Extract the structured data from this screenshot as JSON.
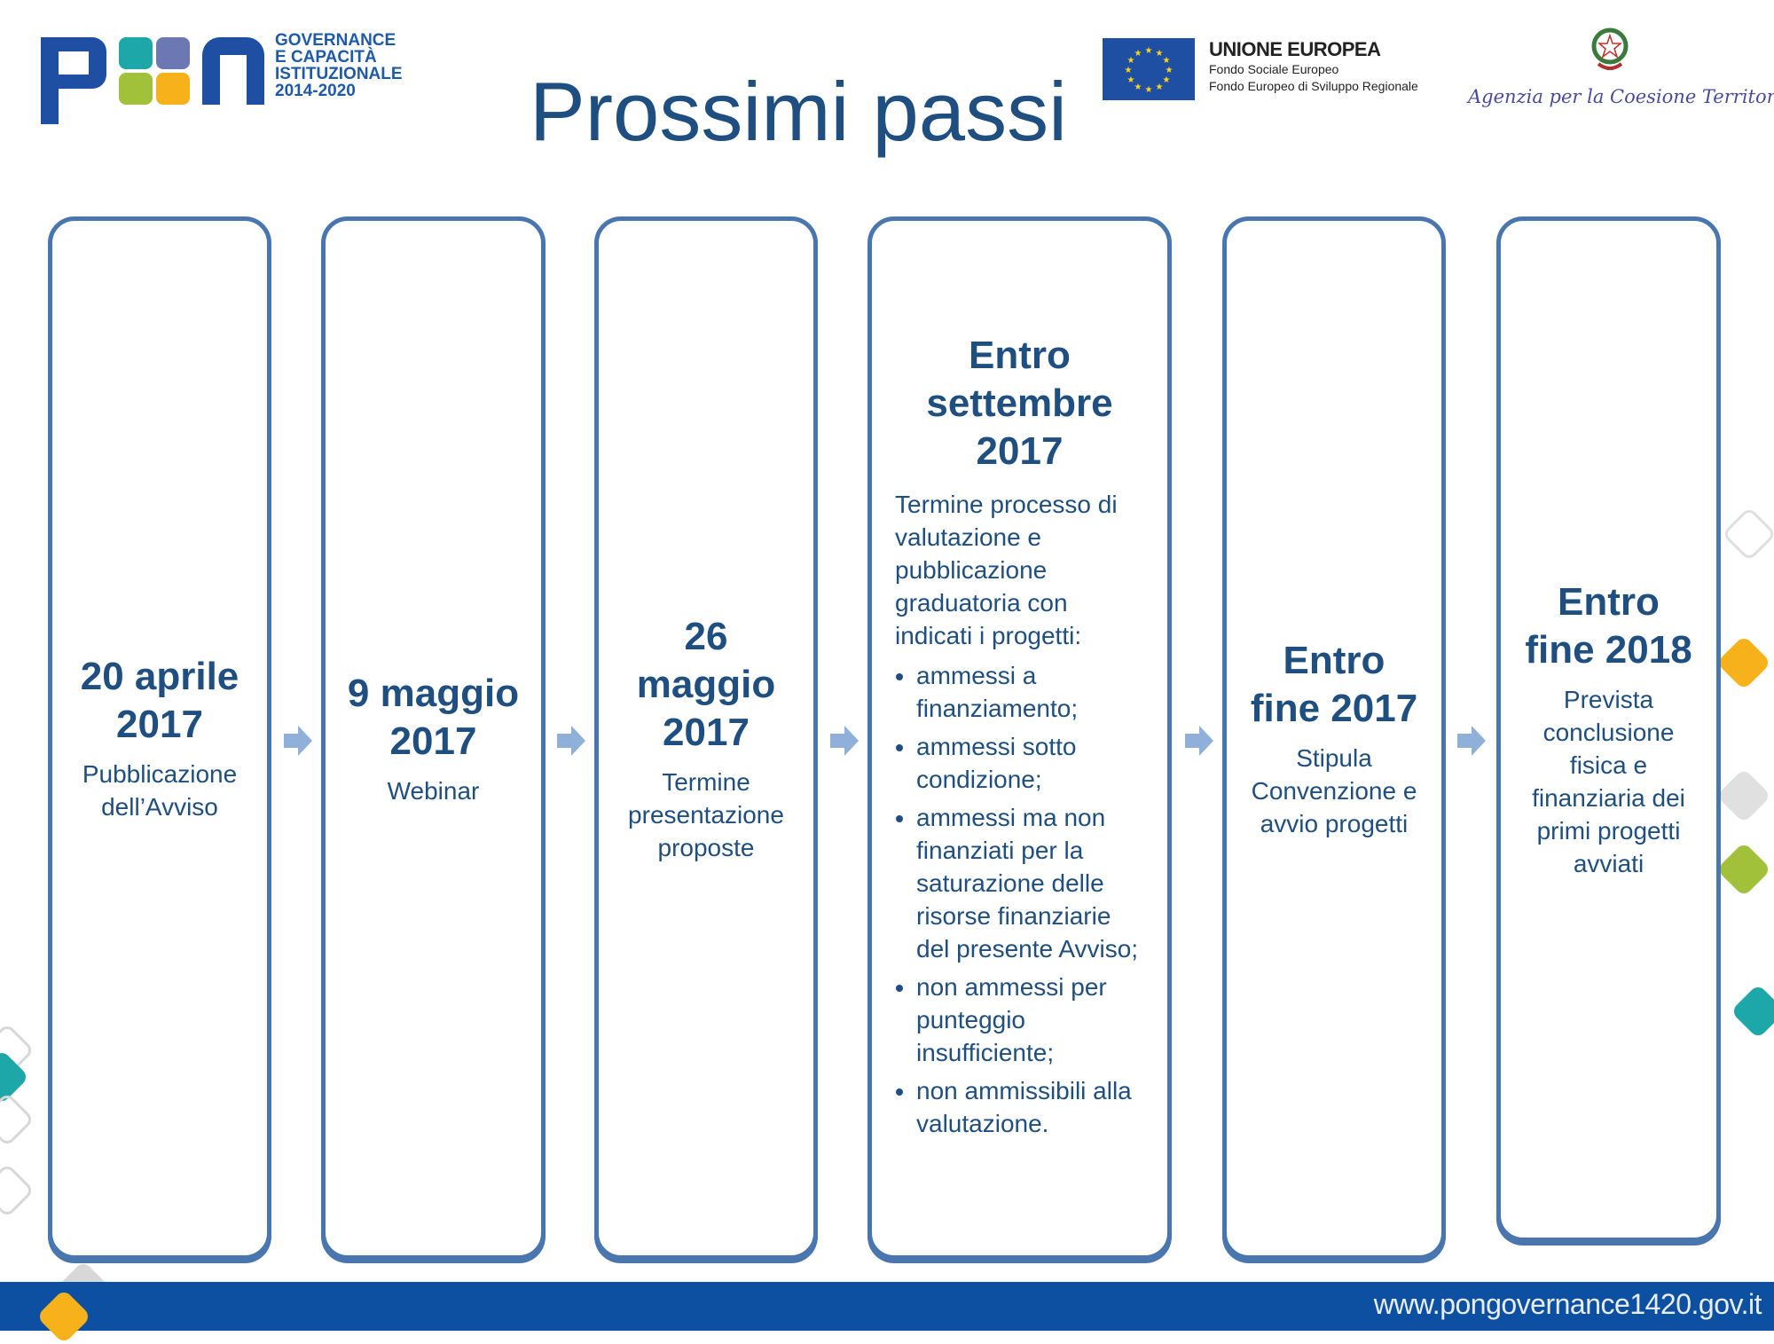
{
  "header": {
    "title": "Prossimi passi",
    "pon_logo": {
      "letters": "PON",
      "lines": [
        "GOVERNANCE",
        "E CAPACITÀ",
        "ISTITUZIONALE",
        "2014-2020"
      ]
    },
    "eu_logo": {
      "title": "UNIONE EUROPEA",
      "lines": [
        "Fondo Sociale Europeo",
        "Fondo Europeo di Sviluppo Regionale"
      ]
    },
    "agency_logo": {
      "name": "Agenzia per la Coesione Territoriale"
    }
  },
  "steps": [
    {
      "date": "20 aprile 2017",
      "desc": "Pubblicazione dell’Avviso"
    },
    {
      "date": "9 maggio 2017",
      "desc": "Webinar"
    },
    {
      "date": "26 maggio 2017",
      "desc": "Termine presentazione proposte"
    },
    {
      "date": "Entro settembre 2017",
      "desc": "Termine processo di valutazione e pubblicazione graduatoria con indicati i progetti:",
      "bullets": [
        "ammessi a finanziamento;",
        "ammessi sotto condizione;",
        "ammessi ma non finanziati per la saturazione delle risorse finanziarie del presente Avviso;",
        "non ammessi per punteggio insufficiente;",
        "non ammissibili alla valutazione."
      ]
    },
    {
      "date": "Entro fine 2017",
      "desc": "Stipula Convenzione e avvio progetti"
    },
    {
      "date": "Entro fine 2018",
      "desc": "Prevista conclusione fisica e finanziaria dei primi progetti avviati"
    }
  ],
  "footer": {
    "url": "www.pongovernance1420.gov.it"
  },
  "colors": {
    "primary": "#1f4e80",
    "box_border": "#4a76b0",
    "footer": "#0d4fa0",
    "arrow": "#8fb0d8"
  }
}
